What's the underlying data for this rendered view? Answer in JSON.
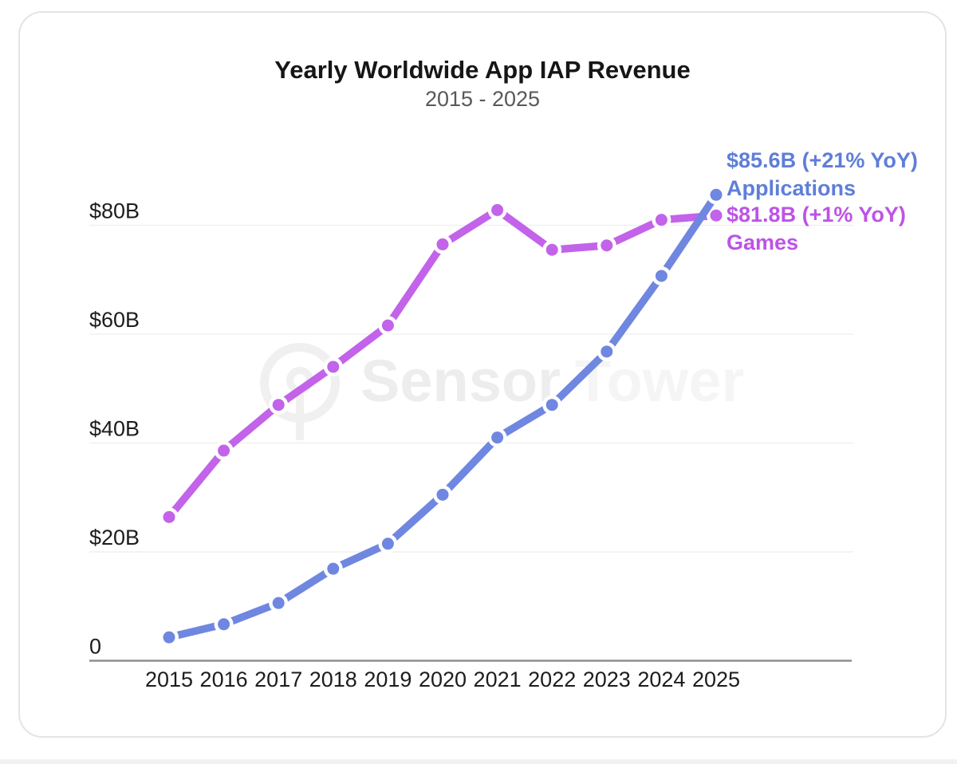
{
  "title": "Yearly Worldwide App IAP Revenue",
  "subtitle": "2015 - 2025",
  "watermark": {
    "word1": "Sensor",
    "word2": "Tower"
  },
  "annotations": {
    "applications": {
      "value": "$85.6B (+21% YoY)",
      "label": "Applications",
      "color": "#5f7ed8"
    },
    "games": {
      "value": "$81.8B (+1% YoY)",
      "label": "Games",
      "color": "#bd53e6"
    }
  },
  "chart_data": {
    "type": "line",
    "title": "Yearly Worldwide App IAP Revenue",
    "subtitle": "2015 - 2025",
    "x": [
      2015,
      2016,
      2017,
      2018,
      2019,
      2020,
      2021,
      2022,
      2023,
      2024,
      2025
    ],
    "series": [
      {
        "name": "Applications",
        "color": "#6f87e0",
        "values": [
          4.3,
          6.7,
          10.6,
          16.9,
          21.5,
          30.5,
          41.0,
          47.0,
          56.8,
          70.7,
          85.6
        ],
        "end_label": "$85.6B (+21% YoY)"
      },
      {
        "name": "Games",
        "color": "#c263ea",
        "values": [
          26.4,
          38.6,
          47.0,
          54.0,
          61.6,
          76.5,
          82.8,
          75.5,
          76.3,
          81.0,
          81.8
        ],
        "end_label": "$81.8B (+1% YoY)"
      }
    ],
    "y_ticks": [
      {
        "value": 80,
        "label": "$80B"
      },
      {
        "value": 60,
        "label": "$60B"
      },
      {
        "value": 40,
        "label": "$40B"
      },
      {
        "value": 20,
        "label": "$20B"
      },
      {
        "value": 0,
        "label": "0"
      }
    ],
    "ylim": [
      0,
      90
    ],
    "unit": "billion USD per year",
    "grid": true,
    "legend_position": "end-of-line",
    "colors": {
      "grid": "#f0f0f0",
      "axis": "#8f8f8f",
      "tick_text": "#1d1d1d"
    }
  }
}
